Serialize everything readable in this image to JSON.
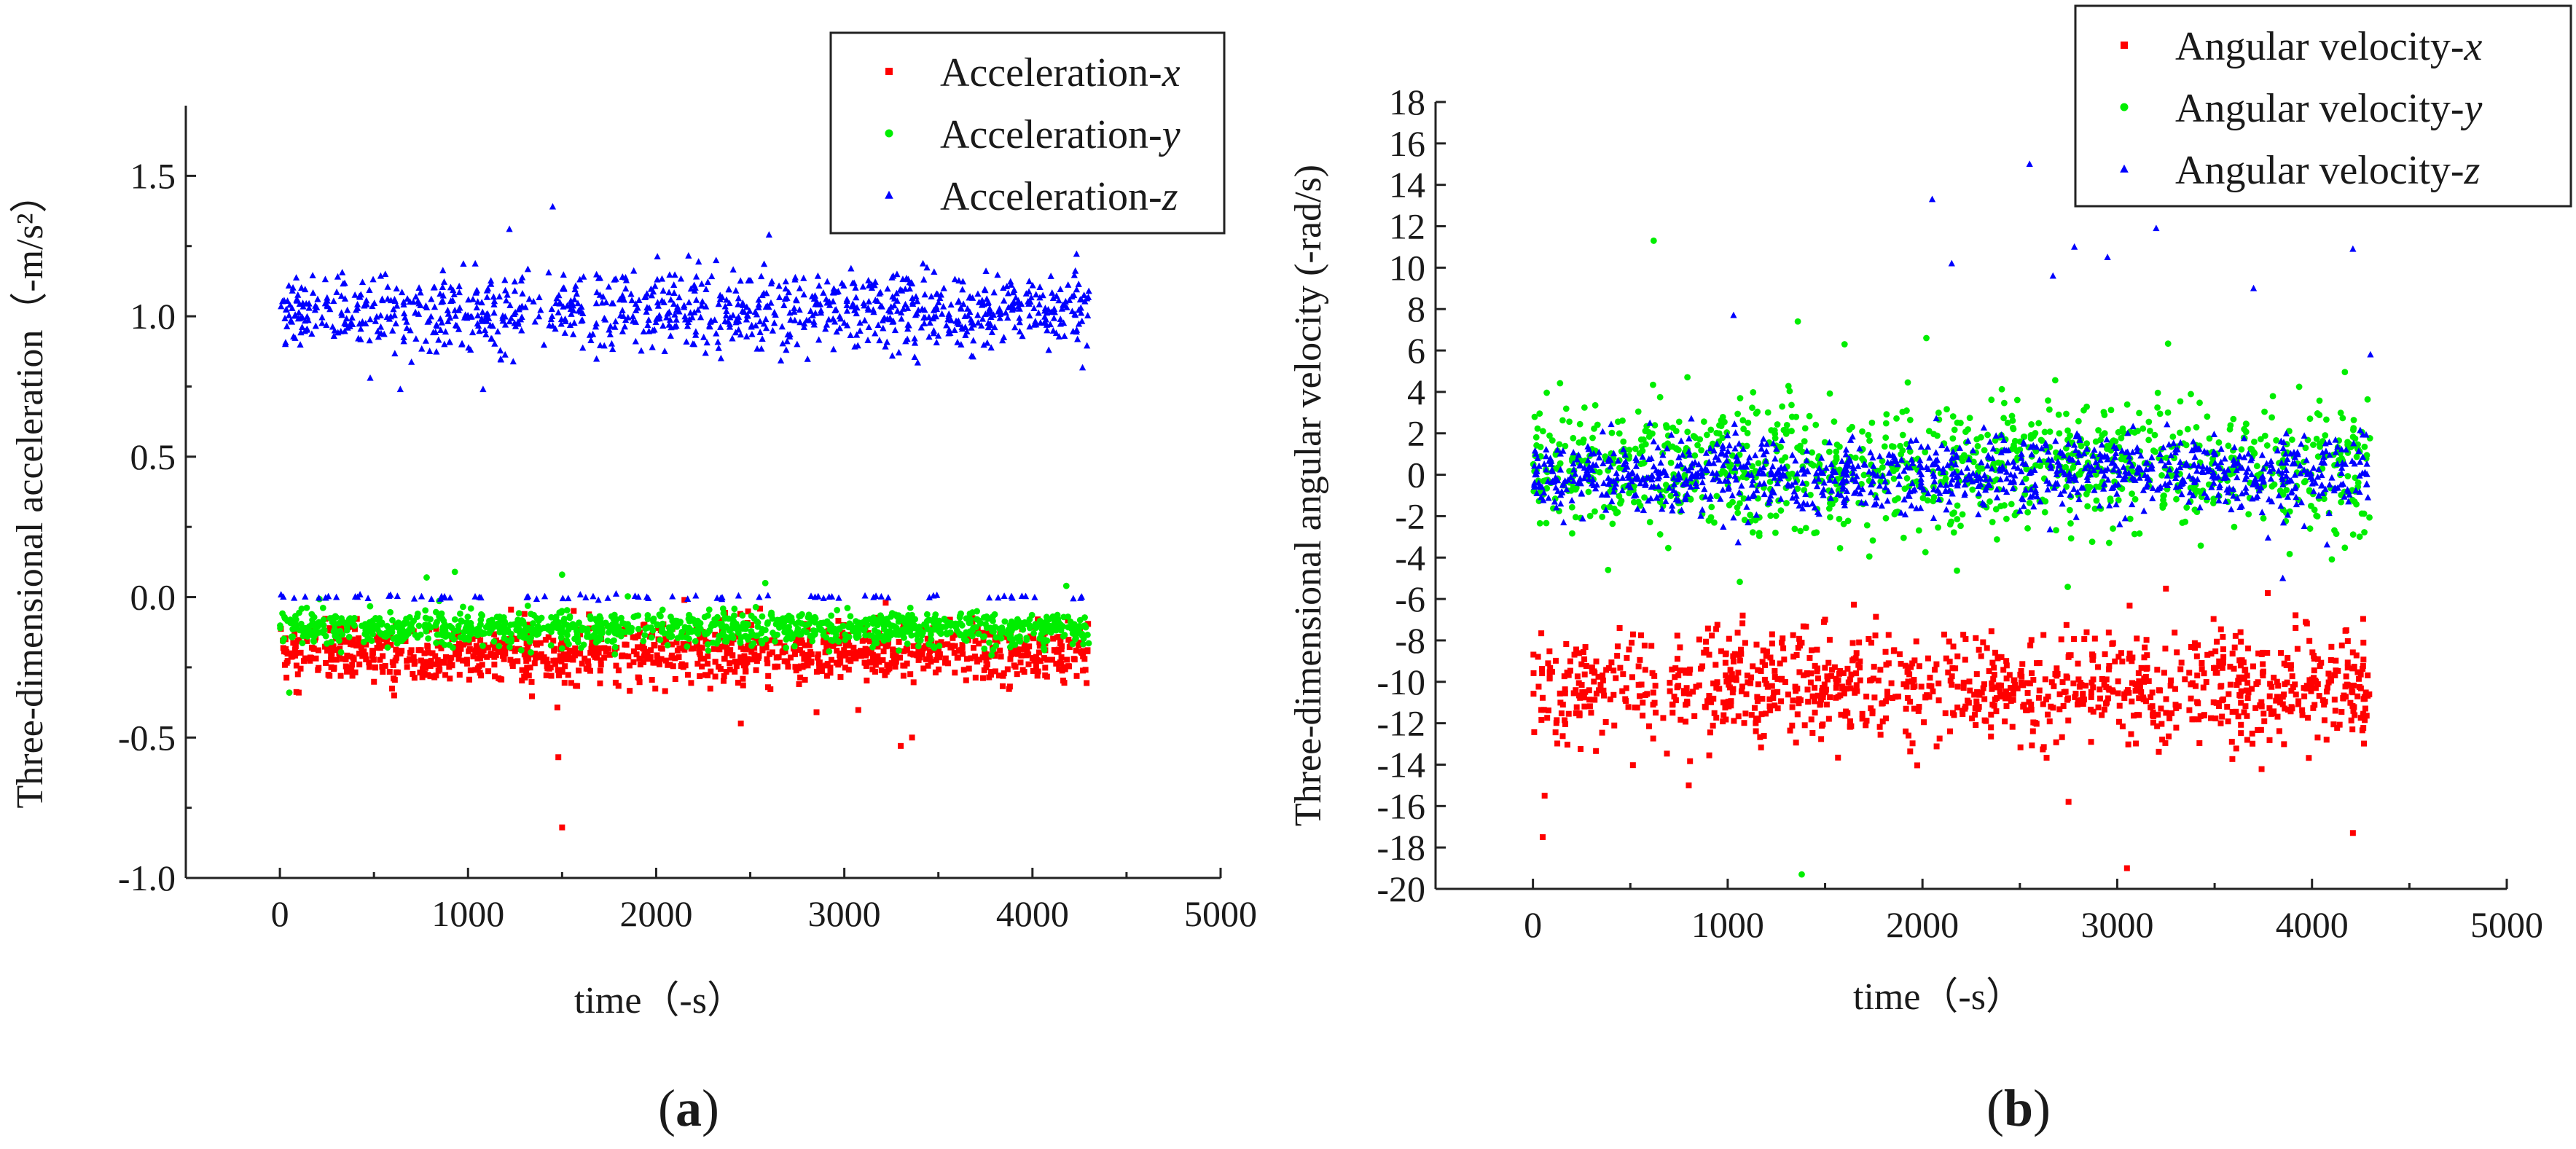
{
  "figure": {
    "panel_a_label": "a",
    "panel_b_label": "b"
  },
  "chart_data": [
    {
      "type": "scatter",
      "panel": "a",
      "xlabel": "time（-s）",
      "ylabel": "Three-dimensional acceleration（-m/s²）",
      "xlim": [
        -500,
        5000
      ],
      "ylim": [
        -1.0,
        1.75
      ],
      "xticks": [
        0,
        1000,
        2000,
        3000,
        4000,
        5000
      ],
      "xtick_labels": [
        "0",
        "1000",
        "2000",
        "3000",
        "4000",
        "5000"
      ],
      "yticks": [
        -1.0,
        -0.5,
        0.0,
        0.5,
        1.0,
        1.5
      ],
      "ytick_labels": [
        "-1.0",
        "-0.5",
        "0.0",
        "0.5",
        "1.0",
        "1.5"
      ],
      "legend_position": "top-right",
      "series": [
        {
          "name": "Acceleration-",
          "axis": "x",
          "color": "#ff0000",
          "marker": "square",
          "x_range": [
            0,
            4300
          ],
          "center": -0.2,
          "spread": 0.05,
          "outliers": [
            [
              1480,
              -0.57
            ],
            [
              1500,
              -0.82
            ],
            [
              3300,
              -0.53
            ],
            [
              3360,
              -0.5
            ],
            [
              2450,
              -0.45
            ],
            [
              100,
              -0.34
            ],
            [
              3220,
              -0.02
            ],
            [
              2150,
              -0.01
            ],
            [
              1300,
              -0.06
            ]
          ]
        },
        {
          "name": "Acceleration-",
          "axis": "y",
          "color": "#00ee00",
          "marker": "circle",
          "x_range": [
            0,
            4300
          ],
          "center": -0.11,
          "spread": 0.03,
          "outliers": [
            [
              50,
              -0.34
            ],
            [
              780,
              0.07
            ],
            [
              930,
              0.09
            ],
            [
              1500,
              0.08
            ],
            [
              2580,
              0.05
            ],
            [
              4180,
              0.04
            ]
          ]
        },
        {
          "name": "Acceleration-",
          "axis": "z",
          "color": "#0000ff",
          "marker": "triangle",
          "x_range": [
            0,
            4300
          ],
          "center": 1.02,
          "spread": 0.07,
          "outliers": [
            [
              1450,
              1.39
            ],
            [
              1220,
              1.31
            ],
            [
              2600,
              1.29
            ],
            [
              640,
              0.74
            ],
            [
              1080,
              0.74
            ],
            [
              480,
              0.78
            ]
          ],
          "secondary_center": 0.0,
          "secondary_spread": 0.004
        }
      ]
    },
    {
      "type": "scatter",
      "panel": "b",
      "xlabel": "time（-s）",
      "ylabel": "Three-dimensional angular velocity (-rad/s)",
      "xlim": [
        -500,
        5000
      ],
      "ylim": [
        -20,
        18
      ],
      "xticks": [
        0,
        1000,
        2000,
        3000,
        4000,
        5000
      ],
      "xtick_labels": [
        "0",
        "1000",
        "2000",
        "3000",
        "4000",
        "5000"
      ],
      "yticks": [
        -20,
        -18,
        -16,
        -14,
        -12,
        -10,
        -8,
        -6,
        -4,
        -2,
        0,
        2,
        4,
        6,
        8,
        10,
        12,
        14,
        16,
        18
      ],
      "ytick_labels": [
        "-20",
        "-18",
        "-16",
        "-14",
        "-12",
        "-10",
        "-8",
        "-6",
        "-4",
        "-2",
        "0",
        "2",
        "4",
        "6",
        "8",
        "10",
        "12",
        "14",
        "16",
        "18"
      ],
      "legend_position": "top-right",
      "series": [
        {
          "name": "Angular velocity-",
          "axis": "x",
          "color": "#ff0000",
          "marker": "square",
          "x_range": [
            0,
            4300
          ],
          "center": -10.3,
          "spread": 1.3,
          "outliers": [
            [
              50,
              -17.5
            ],
            [
              3050,
              -19.0
            ],
            [
              4210,
              -17.3
            ],
            [
              60,
              -15.5
            ],
            [
              800,
              -15.0
            ],
            [
              2750,
              -15.8
            ],
            [
              1500,
              -7.0
            ],
            [
              3250,
              -5.5
            ]
          ]
        },
        {
          "name": "Angular velocity-",
          "axis": "y",
          "color": "#00ee00",
          "marker": "circle",
          "x_range": [
            0,
            4300
          ],
          "center": 0.3,
          "spread": 1.6,
          "outliers": [
            [
              620,
              11.3
            ],
            [
              1360,
              7.4
            ],
            [
              1380,
              -19.3
            ],
            [
              2020,
              6.6
            ],
            [
              1600,
              6.3
            ]
          ]
        },
        {
          "name": "Angular velocity-",
          "axis": "z",
          "color": "#0000ff",
          "marker": "triangle",
          "x_range": [
            0,
            4300
          ],
          "center": 0.0,
          "spread": 0.9,
          "outliers": [
            [
              2550,
              15.0
            ],
            [
              2050,
              13.3
            ],
            [
              3200,
              11.9
            ],
            [
              4210,
              10.9
            ],
            [
              2780,
              11.0
            ],
            [
              2950,
              10.5
            ],
            [
              1030,
              7.7
            ],
            [
              3700,
              9.0
            ],
            [
              2150,
              10.2
            ],
            [
              2670,
              9.6
            ],
            [
              4300,
              5.8
            ],
            [
              3850,
              -5.0
            ]
          ]
        }
      ]
    }
  ]
}
